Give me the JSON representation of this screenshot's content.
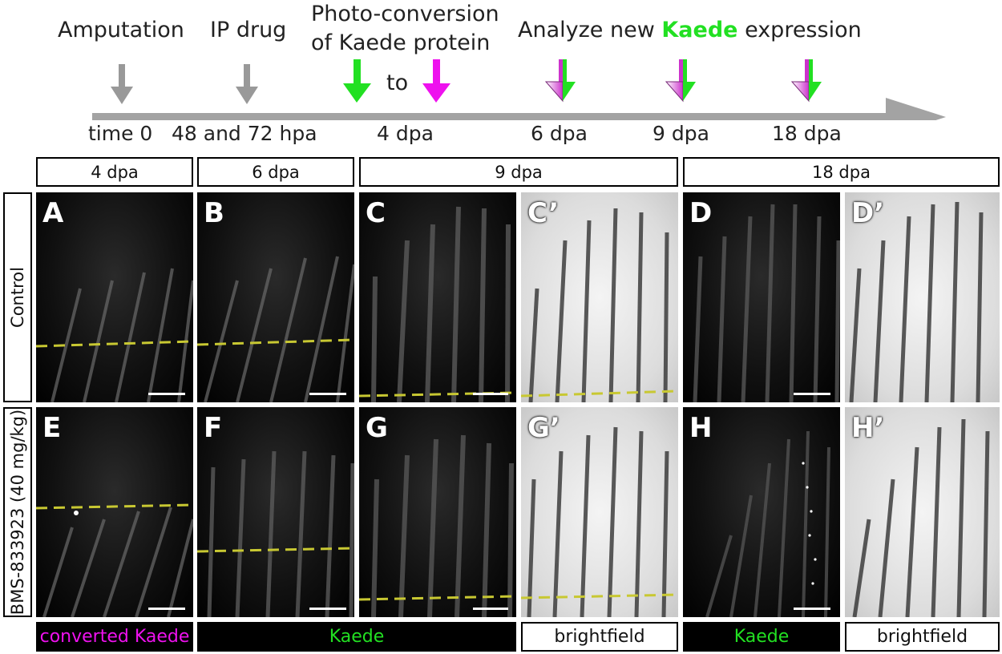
{
  "timeline": {
    "events": {
      "amputation": "Amputation",
      "ip_drug": "IP drug",
      "photo_line1": "Photo-conversion",
      "photo_line2": "of Kaede protein",
      "to": "to",
      "analyze_pre": "Analyze new",
      "analyze_kaede": "Kaede",
      "analyze_post": "expression"
    },
    "times": [
      "time 0",
      "48 and 72 hpa",
      "4 dpa",
      "6 dpa",
      "9 dpa",
      "18 dpa"
    ]
  },
  "headers": [
    "4 dpa",
    "6 dpa",
    "9 dpa",
    "18 dpa"
  ],
  "rows": {
    "control": "Control",
    "treated": "BMS-833923 (40 mg/kg)"
  },
  "panels": {
    "top": [
      "A",
      "B",
      "C",
      "C’",
      "D",
      "D’"
    ],
    "bottom": [
      "E",
      "F",
      "G",
      "G’",
      "H",
      "H’"
    ]
  },
  "footer": {
    "converted": "converted Kaede",
    "kaede1": "Kaede",
    "bf1": "brightfield",
    "kaede2": "Kaede",
    "bf2": "brightfield"
  },
  "colors": {
    "green": "#22e022",
    "magenta": "#ee11ee",
    "gray_arrow": "#999999",
    "dash": "#c8c832"
  }
}
